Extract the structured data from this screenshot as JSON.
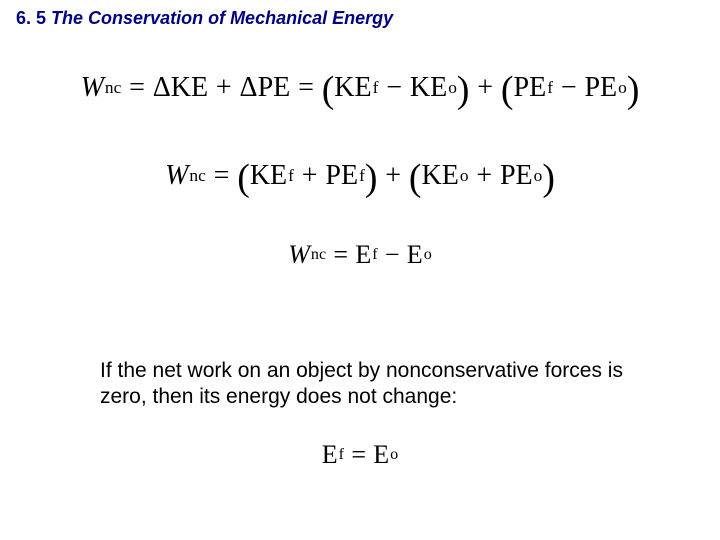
{
  "colors": {
    "heading": "#000080",
    "text": "#000000",
    "background": "#ffffff"
  },
  "fonts": {
    "heading_family": "Arial",
    "heading_size_pt": 14,
    "heading_weight": "bold",
    "heading_style": "italic",
    "body_family": "Arial",
    "body_size_pt": 16,
    "equation_family": "Times New Roman",
    "equation_size_pt": 21
  },
  "heading": {
    "section_number": "6. 5",
    "title": "The Conservation of Mechanical Energy"
  },
  "body_text": "If the net work on an object by nonconservative forces is zero, then its energy does not change:",
  "equations": {
    "eq1": {
      "lhs_var": "W",
      "lhs_sub": "nc",
      "rhs1a_var": "KE",
      "rhs1a_prefix": "Δ",
      "rhs1b_var": "PE",
      "rhs1b_prefix": "Δ",
      "grp1a_var": "KE",
      "grp1a_sub": "f",
      "grp1b_var": "KE",
      "grp1b_sub": "o",
      "grp2a_var": "PE",
      "grp2a_sub": "f",
      "grp2b_var": "PE",
      "grp2b_sub": "o"
    },
    "eq2": {
      "lhs_var": "W",
      "lhs_sub": "nc",
      "grp1a_var": "KE",
      "grp1a_sub": "f",
      "grp1b_var": "PE",
      "grp1b_sub": "f",
      "grp2a_var": "KE",
      "grp2a_sub": "o",
      "grp2b_var": "PE",
      "grp2b_sub": "o"
    },
    "eq3": {
      "lhs_var": "W",
      "lhs_sub": "nc",
      "rhs1_var": "E",
      "rhs1_sub": "f",
      "rhs2_var": "E",
      "rhs2_sub": "o"
    },
    "eq4": {
      "lhs_var": "E",
      "lhs_sub": "f",
      "rhs_var": "E",
      "rhs_sub": "o"
    }
  }
}
